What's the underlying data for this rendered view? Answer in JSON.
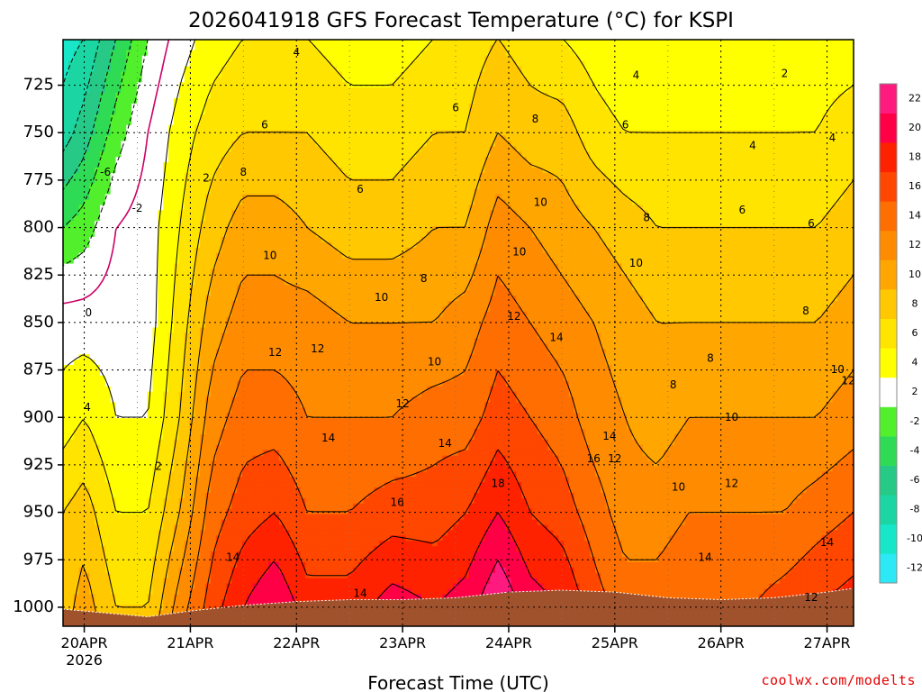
{
  "chart_data": {
    "type": "heatmap",
    "title": "2026041918 GFS Forecast Temperature (°C) for KSPI",
    "xlabel": "Forecast Time (UTC)",
    "ylabel": "",
    "x_tick_labels": [
      "20APR",
      "21APR",
      "22APR",
      "23APR",
      "24APR",
      "25APR",
      "26APR",
      "27APR"
    ],
    "x_tick_year": "2026",
    "y_tick_labels": [
      "725",
      "750",
      "775",
      "800",
      "825",
      "850",
      "875",
      "900",
      "925",
      "950",
      "975",
      "1000"
    ],
    "ylim": [
      1010,
      701
    ],
    "xlim": [
      -0.2,
      7.25
    ],
    "colorbar": {
      "ticks": [
        "-12",
        "-10",
        "-8",
        "-6",
        "-4",
        "-2",
        "2",
        "4",
        "6",
        "8",
        "10",
        "12",
        "14",
        "16",
        "18",
        "20",
        "22"
      ],
      "colors": [
        "#2de9f5",
        "#18e6c8",
        "#1bd6a2",
        "#26c986",
        "#2fdb55",
        "#52f02c",
        "#ffffff",
        "#ffff00",
        "#ffe400",
        "#ffc800",
        "#ffa600",
        "#ff8c00",
        "#ff6e00",
        "#ff4700",
        "#ff2200",
        "#ff0046",
        "#ff1a80"
      ],
      "edges": [
        -14,
        -12,
        -10,
        -8,
        -6,
        -4,
        -2,
        2,
        4,
        6,
        8,
        10,
        12,
        14,
        16,
        18,
        20,
        22
      ]
    },
    "profiles": [
      {
        "x": -0.2,
        "p": [
          700,
          750,
          800,
          850,
          900,
          950,
          1000
        ],
        "t": [
          -11,
          -9,
          -4,
          1,
          3,
          6,
          7
        ]
      },
      {
        "x": 0.0,
        "p": [
          700,
          750,
          800,
          850,
          900,
          950,
          1000
        ],
        "t": [
          -10,
          -7,
          -3,
          1,
          4,
          7,
          9
        ]
      },
      {
        "x": 0.3,
        "p": [
          700,
          750,
          800,
          850,
          900,
          950,
          1000
        ],
        "t": [
          -6,
          -3,
          0,
          1,
          2,
          4,
          6
        ]
      },
      {
        "x": 0.6,
        "p": [
          700,
          750,
          800,
          850,
          900,
          950,
          1000
        ],
        "t": [
          -2,
          0,
          1,
          1,
          2,
          4,
          6
        ]
      },
      {
        "x": 0.9,
        "p": [
          700,
          750,
          800,
          850,
          900,
          950,
          1000
        ],
        "t": [
          1,
          3,
          4,
          5,
          6,
          8,
          11
        ]
      },
      {
        "x": 1.2,
        "p": [
          700,
          750,
          800,
          850,
          900,
          950,
          1000
        ],
        "t": [
          3,
          5,
          7,
          9,
          11,
          13,
          15
        ]
      },
      {
        "x": 1.5,
        "p": [
          700,
          750,
          800,
          850,
          900,
          950,
          1000
        ],
        "t": [
          4,
          6,
          9,
          11,
          13,
          15,
          18
        ]
      },
      {
        "x": 1.8,
        "p": [
          700,
          750,
          800,
          850,
          900,
          950,
          1000
        ],
        "t": [
          4,
          6,
          9,
          11,
          13,
          16,
          20
        ]
      },
      {
        "x": 2.1,
        "p": [
          700,
          750,
          800,
          850,
          900,
          950,
          1000
        ],
        "t": [
          4,
          6,
          8,
          11,
          12,
          14,
          17
        ]
      },
      {
        "x": 2.5,
        "p": [
          700,
          750,
          800,
          850,
          900,
          950,
          1000
        ],
        "t": [
          3,
          5,
          7,
          10,
          12,
          14,
          17
        ]
      },
      {
        "x": 2.9,
        "p": [
          700,
          750,
          800,
          850,
          900,
          950,
          1000
        ],
        "t": [
          3,
          5,
          7,
          10,
          12,
          15,
          19
        ]
      },
      {
        "x": 3.3,
        "p": [
          700,
          750,
          800,
          850,
          900,
          950,
          1000
        ],
        "t": [
          4,
          6,
          8,
          10,
          13,
          15,
          18
        ]
      },
      {
        "x": 3.6,
        "p": [
          700,
          750,
          800,
          850,
          900,
          950,
          1000
        ],
        "t": [
          5,
          6,
          8,
          11,
          13,
          16,
          19
        ]
      },
      {
        "x": 3.9,
        "p": [
          700,
          750,
          800,
          850,
          900,
          950,
          1000
        ],
        "t": [
          6,
          8,
          11,
          13,
          15,
          18,
          22
        ]
      },
      {
        "x": 4.2,
        "p": [
          700,
          750,
          800,
          850,
          900,
          950,
          1000
        ],
        "t": [
          5,
          7,
          10,
          12,
          14,
          16,
          19
        ]
      },
      {
        "x": 4.5,
        "p": [
          700,
          750,
          800,
          850,
          900,
          950,
          1000
        ],
        "t": [
          4,
          7,
          9,
          11,
          13,
          15,
          18
        ]
      },
      {
        "x": 4.8,
        "p": [
          700,
          750,
          800,
          850,
          900,
          950,
          1000
        ],
        "t": [
          3,
          5,
          8,
          10,
          11,
          13,
          15
        ]
      },
      {
        "x": 5.1,
        "p": [
          700,
          750,
          800,
          850,
          900,
          950,
          1000
        ],
        "t": [
          2,
          4,
          7,
          9,
          10,
          11,
          13
        ]
      },
      {
        "x": 5.4,
        "p": [
          700,
          750,
          800,
          850,
          900,
          950,
          1000
        ],
        "t": [
          2,
          4,
          6,
          8,
          9,
          11,
          13
        ]
      },
      {
        "x": 5.7,
        "p": [
          700,
          750,
          800,
          850,
          900,
          950,
          1000
        ],
        "t": [
          2,
          4,
          6,
          8,
          10,
          12,
          14
        ]
      },
      {
        "x": 6.0,
        "p": [
          700,
          750,
          800,
          850,
          900,
          950,
          1000
        ],
        "t": [
          2,
          4,
          6,
          8,
          10,
          12,
          14
        ]
      },
      {
        "x": 6.3,
        "p": [
          700,
          750,
          800,
          850,
          900,
          950,
          1000
        ],
        "t": [
          2,
          4,
          6,
          8,
          10,
          12,
          14
        ]
      },
      {
        "x": 6.6,
        "p": [
          700,
          750,
          800,
          850,
          900,
          950,
          1000
        ],
        "t": [
          2,
          4,
          6,
          8,
          10,
          12,
          15
        ]
      },
      {
        "x": 6.9,
        "p": [
          700,
          750,
          800,
          850,
          900,
          950,
          1000
        ],
        "t": [
          3,
          4,
          6,
          8,
          10,
          13,
          16
        ]
      },
      {
        "x": 7.25,
        "p": [
          700,
          750,
          800,
          850,
          900,
          950,
          1000
        ],
        "t": [
          3,
          5,
          7,
          9,
          11,
          14,
          17
        ]
      }
    ],
    "surface_pressure": [
      {
        "x": -0.2,
        "p": 1001
      },
      {
        "x": 0.2,
        "p": 1003
      },
      {
        "x": 0.6,
        "p": 1005
      },
      {
        "x": 1.0,
        "p": 1002
      },
      {
        "x": 1.5,
        "p": 999
      },
      {
        "x": 2.0,
        "p": 997
      },
      {
        "x": 2.5,
        "p": 996
      },
      {
        "x": 3.0,
        "p": 996
      },
      {
        "x": 3.5,
        "p": 995
      },
      {
        "x": 4.0,
        "p": 992
      },
      {
        "x": 4.5,
        "p": 991
      },
      {
        "x": 5.0,
        "p": 992
      },
      {
        "x": 5.5,
        "p": 995
      },
      {
        "x": 6.0,
        "p": 996
      },
      {
        "x": 6.5,
        "p": 995
      },
      {
        "x": 7.0,
        "p": 992
      },
      {
        "x": 7.25,
        "p": 990
      }
    ],
    "contour_labels": [
      {
        "x": 0.04,
        "p": 845,
        "text": "0"
      },
      {
        "x": 0.03,
        "p": 895,
        "text": "4"
      },
      {
        "x": 0.2,
        "p": 771,
        "text": "-6"
      },
      {
        "x": 0.5,
        "p": 790,
        "text": "-2"
      },
      {
        "x": 0.7,
        "p": 926,
        "text": "2"
      },
      {
        "x": 1.15,
        "p": 774,
        "text": "2"
      },
      {
        "x": 2.0,
        "p": 708,
        "text": "4"
      },
      {
        "x": 1.7,
        "p": 746,
        "text": "6"
      },
      {
        "x": 1.5,
        "p": 771,
        "text": "8"
      },
      {
        "x": 1.75,
        "p": 815,
        "text": "10"
      },
      {
        "x": 1.8,
        "p": 866,
        "text": "12"
      },
      {
        "x": 2.2,
        "p": 864,
        "text": "12"
      },
      {
        "x": 2.3,
        "p": 911,
        "text": "14"
      },
      {
        "x": 1.4,
        "p": 974,
        "text": "14"
      },
      {
        "x": 2.6,
        "p": 780,
        "text": "6"
      },
      {
        "x": 2.8,
        "p": 837,
        "text": "10"
      },
      {
        "x": 3.2,
        "p": 827,
        "text": "8"
      },
      {
        "x": 3.3,
        "p": 871,
        "text": "10"
      },
      {
        "x": 3.0,
        "p": 893,
        "text": "12"
      },
      {
        "x": 2.95,
        "p": 945,
        "text": "16"
      },
      {
        "x": 3.4,
        "p": 914,
        "text": "14"
      },
      {
        "x": 2.6,
        "p": 993,
        "text": "14"
      },
      {
        "x": 3.5,
        "p": 737,
        "text": "6"
      },
      {
        "x": 4.25,
        "p": 743,
        "text": "8"
      },
      {
        "x": 4.3,
        "p": 787,
        "text": "10"
      },
      {
        "x": 4.1,
        "p": 813,
        "text": "10"
      },
      {
        "x": 4.05,
        "p": 847,
        "text": "12"
      },
      {
        "x": 4.45,
        "p": 858,
        "text": "14"
      },
      {
        "x": 3.9,
        "p": 935,
        "text": "18"
      },
      {
        "x": 4.8,
        "p": 922,
        "text": "16"
      },
      {
        "x": 4.95,
        "p": 910,
        "text": "14"
      },
      {
        "x": 5.0,
        "p": 922,
        "text": "12"
      },
      {
        "x": 5.2,
        "p": 819,
        "text": "10"
      },
      {
        "x": 5.3,
        "p": 795,
        "text": "8"
      },
      {
        "x": 5.1,
        "p": 746,
        "text": "6"
      },
      {
        "x": 5.2,
        "p": 720,
        "text": "4"
      },
      {
        "x": 5.55,
        "p": 883,
        "text": "8"
      },
      {
        "x": 5.6,
        "p": 937,
        "text": "10"
      },
      {
        "x": 5.9,
        "p": 869,
        "text": "8"
      },
      {
        "x": 6.1,
        "p": 900,
        "text": "10"
      },
      {
        "x": 6.1,
        "p": 935,
        "text": "12"
      },
      {
        "x": 5.85,
        "p": 974,
        "text": "14"
      },
      {
        "x": 6.3,
        "p": 757,
        "text": "4"
      },
      {
        "x": 6.2,
        "p": 791,
        "text": "6"
      },
      {
        "x": 6.6,
        "p": 719,
        "text": "2"
      },
      {
        "x": 7.05,
        "p": 753,
        "text": "4"
      },
      {
        "x": 6.85,
        "p": 798,
        "text": "6"
      },
      {
        "x": 6.8,
        "p": 844,
        "text": "8"
      },
      {
        "x": 7.1,
        "p": 875,
        "text": "10"
      },
      {
        "x": 7.2,
        "p": 881,
        "text": "12"
      },
      {
        "x": 7.0,
        "p": 966,
        "text": "14"
      },
      {
        "x": 6.85,
        "p": 995,
        "text": "12"
      }
    ]
  },
  "credit": "coolwx.com/modelts"
}
